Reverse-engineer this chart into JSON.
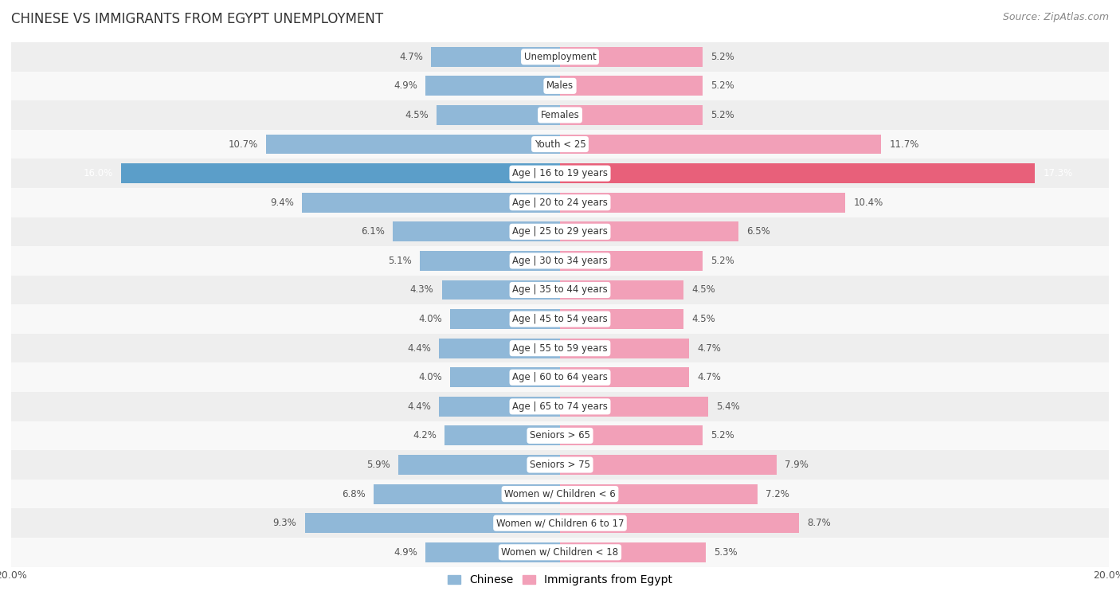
{
  "title": "CHINESE VS IMMIGRANTS FROM EGYPT UNEMPLOYMENT",
  "source": "Source: ZipAtlas.com",
  "categories": [
    "Unemployment",
    "Males",
    "Females",
    "Youth < 25",
    "Age | 16 to 19 years",
    "Age | 20 to 24 years",
    "Age | 25 to 29 years",
    "Age | 30 to 34 years",
    "Age | 35 to 44 years",
    "Age | 45 to 54 years",
    "Age | 55 to 59 years",
    "Age | 60 to 64 years",
    "Age | 65 to 74 years",
    "Seniors > 65",
    "Seniors > 75",
    "Women w/ Children < 6",
    "Women w/ Children 6 to 17",
    "Women w/ Children < 18"
  ],
  "chinese": [
    4.7,
    4.9,
    4.5,
    10.7,
    16.0,
    9.4,
    6.1,
    5.1,
    4.3,
    4.0,
    4.4,
    4.0,
    4.4,
    4.2,
    5.9,
    6.8,
    9.3,
    4.9
  ],
  "egypt": [
    5.2,
    5.2,
    5.2,
    11.7,
    17.3,
    10.4,
    6.5,
    5.2,
    4.5,
    4.5,
    4.7,
    4.7,
    5.4,
    5.2,
    7.9,
    7.2,
    8.7,
    5.3
  ],
  "chinese_color": "#90b8d8",
  "egypt_color": "#f2a0b8",
  "highlight_chinese_color": "#5b9ec9",
  "highlight_egypt_color": "#e8607a",
  "row_bg_odd": "#eeeeee",
  "row_bg_even": "#f8f8f8",
  "xlim": 20.0,
  "legend_chinese": "Chinese",
  "legend_egypt": "Immigrants from Egypt",
  "title_fontsize": 12,
  "source_fontsize": 9,
  "label_fontsize": 8.5,
  "value_fontsize": 8.5,
  "bar_height": 0.68,
  "highlight_idx": 4
}
